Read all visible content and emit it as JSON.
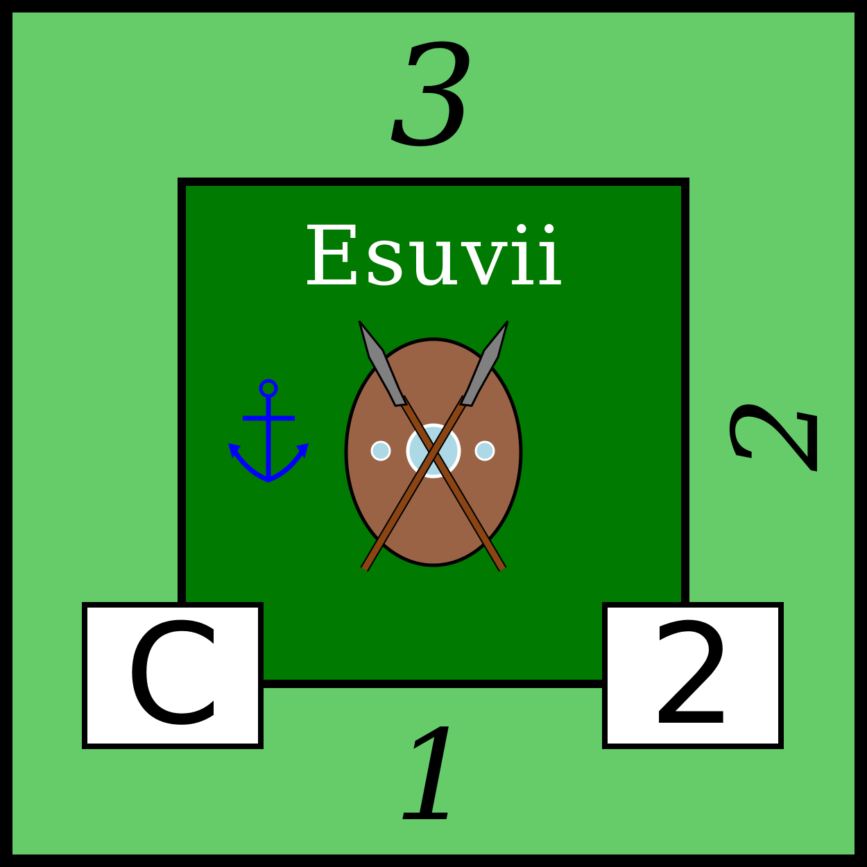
{
  "tile": {
    "name": "Esuvii",
    "edge_numbers": {
      "top": "3",
      "right": "2",
      "bottom": "1"
    },
    "left_box_label": "C",
    "right_box_label": "2",
    "icons": [
      "anchor-icon",
      "shield-with-crossed-spears-icon"
    ]
  },
  "colors": {
    "outer_background": "#66cc6a",
    "inner_background": "#007a00",
    "border": "#000000",
    "anchor": "#0000ff",
    "shield": "#9a6346",
    "shield_boss": "#add8e6",
    "spear_shaft": "#8b4513",
    "spear_head": "#808080",
    "text_light": "#ffffff"
  }
}
